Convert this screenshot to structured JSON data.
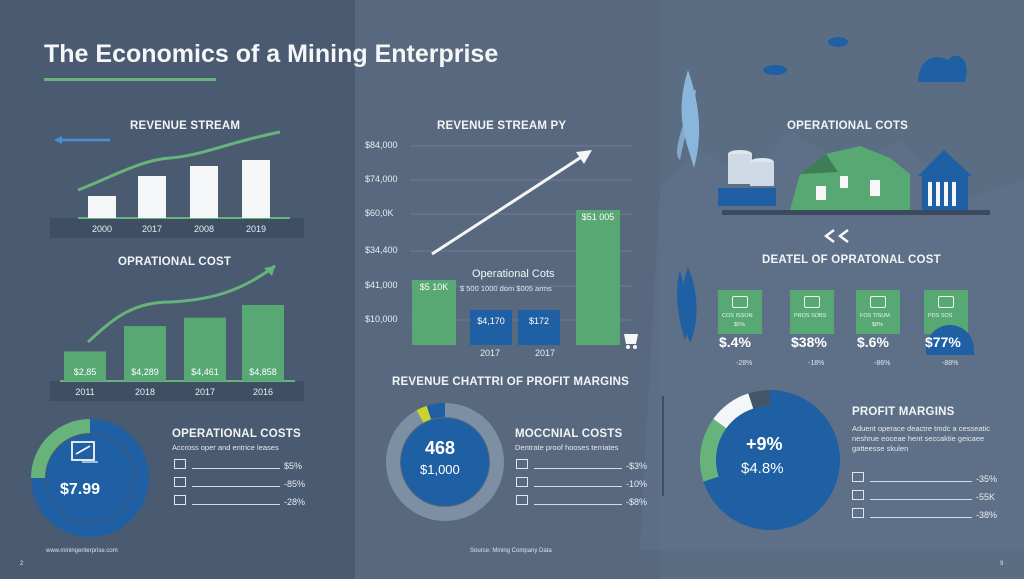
{
  "header": {
    "title": "The Economics of a Mining Enterprise"
  },
  "footer": {
    "left_text": "www.miningenterprise.com",
    "left_page": "2",
    "center_text": "Source: Mining Company Data",
    "right_page": "9"
  },
  "colors": {
    "green": "#67b37b",
    "blue": "#1f5fa3",
    "white_bar": "#f4f6f8"
  },
  "chart_data": [
    {
      "type": "bar",
      "title": "REVENUE STREAM",
      "categories": [
        "2000",
        "2017",
        "2008",
        "2019"
      ],
      "values": [
        22,
        42,
        52,
        58
      ],
      "ylim": [
        0,
        70
      ],
      "trend_line": true
    },
    {
      "type": "bar",
      "title": "OPRATIONAL COST",
      "categories": [
        "2011",
        "2018",
        "2017",
        "2016"
      ],
      "labels": [
        "$2,85",
        "$4,289",
        "$4,461",
        "$4,858"
      ],
      "values": [
        28,
        52,
        60,
        72
      ],
      "ylim": [
        0,
        90
      ],
      "trend_line": true
    },
    {
      "type": "bar",
      "title": "REVENUE STREAM PY",
      "yticks": [
        "$84,000",
        "$74,000",
        "$60,0K",
        "$34,400",
        "$41,000",
        "$10,000"
      ],
      "categories": [
        "2017",
        "2017"
      ],
      "bars": [
        {
          "label": "$5 10K",
          "value": 52,
          "color": "green"
        },
        {
          "label": "$4,170",
          "value": 28,
          "color": "blue"
        },
        {
          "label": "$172",
          "value": 28,
          "color": "blue"
        },
        {
          "label": "$51 005",
          "value": 108,
          "color": "green"
        }
      ],
      "annotation_title": "Operational Cots",
      "annotation_sub": "$ 500 1000 dom $005 arms"
    },
    {
      "type": "pie",
      "title": "OPERATIONAL COSTS",
      "center_value": "$7.99",
      "subtitle": "Accross oper and entrice leases",
      "legend": [
        {
          "icon": "truck-icon",
          "value": "$5%"
        },
        {
          "icon": "gear-icon",
          "value": "-85%"
        },
        {
          "icon": "tool-icon",
          "value": "-28%"
        }
      ],
      "slices": [
        {
          "value": 75,
          "color": "#1f5fa3"
        },
        {
          "value": 25,
          "color": "#67b37b"
        }
      ]
    },
    {
      "type": "pie",
      "title": "MOCCNIAL COSTS",
      "center_top": "468",
      "center_value": "$1,000",
      "subtitle": "Dentrate proof hooses terriates",
      "legend": [
        {
          "icon": "list-icon",
          "value": "-$3%"
        },
        {
          "icon": "truck-icon",
          "value": "-10%"
        },
        {
          "icon": "tool-icon",
          "value": "-$8%"
        }
      ],
      "slices": [
        {
          "value": 92,
          "color": "#7d8fa3"
        },
        {
          "value": 3,
          "color": "#c9d52a"
        },
        {
          "value": 5,
          "color": "#1f5fa3"
        }
      ]
    },
    {
      "type": "pie",
      "title": "PROFIT MARGINS",
      "center_top": "+9%",
      "center_value": "$4.8%",
      "subtitle": "Aduent operace deactre tmdc a cesseatic neshrue eoceae hent seccaktie geicaee gatteesse skulen",
      "legend": [
        {
          "icon": "truck-icon",
          "value": "-35%"
        },
        {
          "icon": "cart-icon",
          "value": "-55K"
        },
        {
          "icon": "tool-icon",
          "value": "-38%"
        }
      ],
      "slices": [
        {
          "value": 70,
          "color": "#1f5fa3"
        },
        {
          "value": 15,
          "color": "#67b37b"
        },
        {
          "value": 10,
          "color": "#f4f6f8"
        },
        {
          "value": 5,
          "color": "#44556a"
        }
      ]
    }
  ],
  "mid_section": {
    "title": "REVENUE CHATTRI OF PROFIT MARGINS"
  },
  "operational_cots": {
    "title": "OPERATIONAL COTS"
  },
  "detail": {
    "title": "DEATEL OF OPRATONAL COST",
    "cards": [
      {
        "icon": "leaf-icon",
        "sub1": "COS ISSON",
        "sub2": "$5%",
        "value": "$.4%",
        "pct": "-28%"
      },
      {
        "icon": "truck-icon",
        "sub1": "PROS SOBS",
        "sub2": "",
        "value": "$38%",
        "pct": "-18%"
      },
      {
        "icon": "excavator-icon",
        "sub1": "FOS TISUM",
        "sub2": "$8%",
        "value": "$.6%",
        "pct": "-86%"
      },
      {
        "icon": "factory-icon",
        "sub1": "PDS SOS",
        "sub2": "",
        "value": "$77%",
        "pct": "-88%"
      }
    ]
  }
}
